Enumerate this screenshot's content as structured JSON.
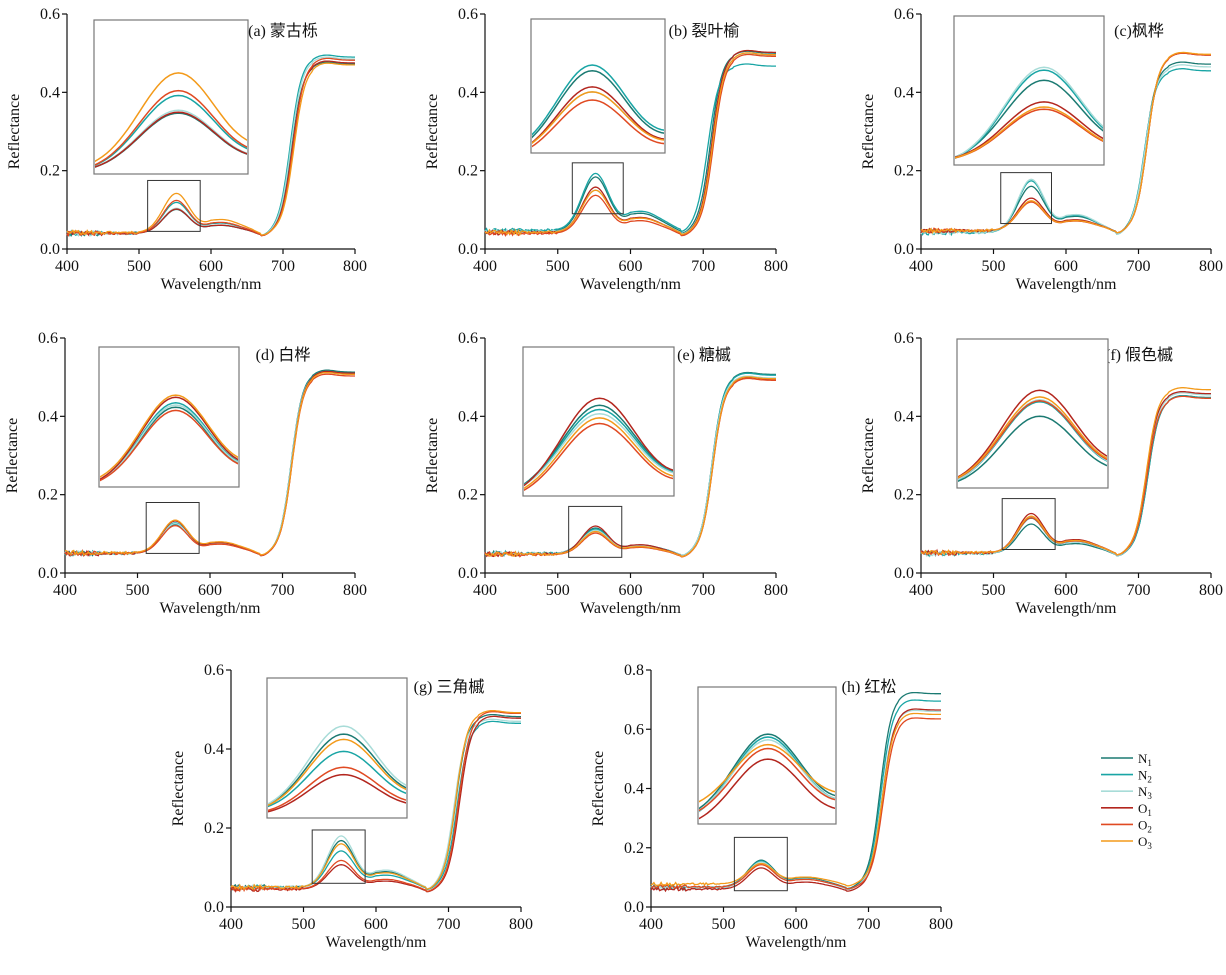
{
  "chart_data": {
    "type": "line",
    "layout": "8 subplots (3-3-2 grid) with shared legend at right of bottom row",
    "xlabel": "Wavelength/nm",
    "ylabel": "Reflectance",
    "xlim": [
      400,
      800
    ],
    "xticks": [
      400,
      500,
      600,
      700,
      800
    ],
    "legend": {
      "placement": "bottom-right",
      "entries": [
        {
          "key": "N1",
          "base": "N",
          "sub": "1",
          "color": "#1b7a72"
        },
        {
          "key": "N2",
          "base": "N",
          "sub": "2",
          "color": "#19a5a5"
        },
        {
          "key": "N3",
          "base": "N",
          "sub": "3",
          "color": "#a8dcd8"
        },
        {
          "key": "O1",
          "base": "O",
          "sub": "1",
          "color": "#b3261e"
        },
        {
          "key": "O2",
          "base": "O",
          "sub": "2",
          "color": "#e04a22"
        },
        {
          "key": "O3",
          "base": "O",
          "sub": "3",
          "color": "#f39a1a"
        }
      ]
    },
    "inset_note": "Each panel has a zoom box over ~515-585 nm around the green peak, magnified in an inset",
    "panels": [
      {
        "id": "a",
        "title": "(a) 蒙古栎",
        "ylim": [
          0,
          0.6
        ],
        "yticks": [
          0.0,
          0.2,
          0.4,
          0.6
        ],
        "zoom_box": {
          "x": [
            512,
            585
          ],
          "y": [
            0.045,
            0.175
          ]
        },
        "series": {
          "N1": {
            "base": 0.04,
            "green": 0.101,
            "nir": 0.472,
            "red_edge": 712
          },
          "N2": {
            "base": 0.04,
            "green": 0.119,
            "nir": 0.49,
            "red_edge": 710
          },
          "N3": {
            "base": 0.04,
            "green": 0.104,
            "nir": 0.485,
            "red_edge": 711
          },
          "O1": {
            "base": 0.04,
            "green": 0.102,
            "nir": 0.475,
            "red_edge": 713
          },
          "O2": {
            "base": 0.04,
            "green": 0.124,
            "nir": 0.482,
            "red_edge": 714
          },
          "O3": {
            "base": 0.042,
            "green": 0.142,
            "nir": 0.47,
            "red_edge": 715
          }
        }
      },
      {
        "id": "b",
        "title": "(b) 裂叶榆",
        "ylim": [
          0,
          0.6
        ],
        "yticks": [
          0.0,
          0.2,
          0.4,
          0.6
        ],
        "zoom_box": {
          "x": [
            520,
            590
          ],
          "y": [
            0.09,
            0.22
          ]
        },
        "series": {
          "N1": {
            "base": 0.045,
            "green": 0.184,
            "nir": 0.5,
            "red_edge": 710
          },
          "N2": {
            "base": 0.048,
            "green": 0.193,
            "nir": 0.467,
            "red_edge": 706
          },
          "N3": {
            "base": 0.044,
            "green": 0.15,
            "nir": 0.495,
            "red_edge": 712
          },
          "O1": {
            "base": 0.042,
            "green": 0.158,
            "nir": 0.502,
            "red_edge": 712
          },
          "O2": {
            "base": 0.04,
            "green": 0.137,
            "nir": 0.492,
            "red_edge": 714
          },
          "O3": {
            "base": 0.043,
            "green": 0.15,
            "nir": 0.496,
            "red_edge": 713
          }
        }
      },
      {
        "id": "c",
        "title": "(c)枫桦",
        "ylim": [
          0,
          0.6
        ],
        "yticks": [
          0.0,
          0.2,
          0.4,
          0.6
        ],
        "zoom_box": {
          "x": [
            510,
            580
          ],
          "y": [
            0.065,
            0.195
          ]
        },
        "series": {
          "N1": {
            "base": 0.045,
            "green": 0.16,
            "nir": 0.472,
            "red_edge": 709
          },
          "N2": {
            "base": 0.042,
            "green": 0.174,
            "nir": 0.455,
            "red_edge": 708
          },
          "N3": {
            "base": 0.043,
            "green": 0.178,
            "nir": 0.465,
            "red_edge": 709
          },
          "O1": {
            "base": 0.047,
            "green": 0.13,
            "nir": 0.495,
            "red_edge": 712
          },
          "O2": {
            "base": 0.047,
            "green": 0.12,
            "nir": 0.495,
            "red_edge": 712
          },
          "O3": {
            "base": 0.047,
            "green": 0.123,
            "nir": 0.497,
            "red_edge": 712
          }
        }
      },
      {
        "id": "d",
        "title": "(d) 白桦",
        "ylim": [
          0,
          0.6
        ],
        "yticks": [
          0.0,
          0.2,
          0.4,
          0.6
        ],
        "zoom_box": {
          "x": [
            512,
            585
          ],
          "y": [
            0.05,
            0.18
          ]
        },
        "series": {
          "N1": {
            "base": 0.05,
            "green": 0.124,
            "nir": 0.513,
            "red_edge": 712
          },
          "N2": {
            "base": 0.05,
            "green": 0.128,
            "nir": 0.51,
            "red_edge": 712
          },
          "N3": {
            "base": 0.05,
            "green": 0.126,
            "nir": 0.508,
            "red_edge": 712
          },
          "O1": {
            "base": 0.05,
            "green": 0.133,
            "nir": 0.51,
            "red_edge": 713
          },
          "O2": {
            "base": 0.05,
            "green": 0.121,
            "nir": 0.503,
            "red_edge": 713
          },
          "O3": {
            "base": 0.052,
            "green": 0.135,
            "nir": 0.507,
            "red_edge": 713
          }
        }
      },
      {
        "id": "e",
        "title": "(e) 糖槭",
        "ylim": [
          0,
          0.6
        ],
        "yticks": [
          0.0,
          0.2,
          0.4,
          0.6
        ],
        "zoom_box": {
          "x": [
            515,
            588
          ],
          "y": [
            0.04,
            0.17
          ]
        },
        "series": {
          "N1": {
            "base": 0.05,
            "green": 0.115,
            "nir": 0.507,
            "red_edge": 712
          },
          "N2": {
            "base": 0.05,
            "green": 0.112,
            "nir": 0.505,
            "red_edge": 712
          },
          "N3": {
            "base": 0.05,
            "green": 0.109,
            "nir": 0.498,
            "red_edge": 712
          },
          "O1": {
            "base": 0.048,
            "green": 0.12,
            "nir": 0.495,
            "red_edge": 713
          },
          "O2": {
            "base": 0.047,
            "green": 0.102,
            "nir": 0.492,
            "red_edge": 713
          },
          "O3": {
            "base": 0.048,
            "green": 0.106,
            "nir": 0.496,
            "red_edge": 713
          }
        }
      },
      {
        "id": "f",
        "title": "(f) 假色槭",
        "ylim": [
          0,
          0.6
        ],
        "yticks": [
          0.0,
          0.2,
          0.4,
          0.6
        ],
        "zoom_box": {
          "x": [
            512,
            585
          ],
          "y": [
            0.06,
            0.19
          ]
        },
        "series": {
          "N1": {
            "base": 0.05,
            "green": 0.125,
            "nir": 0.448,
            "red_edge": 713
          },
          "N2": {
            "base": 0.05,
            "green": 0.14,
            "nir": 0.448,
            "red_edge": 713
          },
          "N3": {
            "base": 0.05,
            "green": 0.142,
            "nir": 0.455,
            "red_edge": 712
          },
          "O1": {
            "base": 0.052,
            "green": 0.152,
            "nir": 0.458,
            "red_edge": 711
          },
          "O2": {
            "base": 0.052,
            "green": 0.141,
            "nir": 0.446,
            "red_edge": 712
          },
          "O3": {
            "base": 0.052,
            "green": 0.145,
            "nir": 0.468,
            "red_edge": 711
          }
        }
      },
      {
        "id": "g",
        "title": "(g) 三角槭",
        "ylim": [
          0,
          0.6
        ],
        "yticks": [
          0.0,
          0.2,
          0.4,
          0.6
        ],
        "zoom_box": {
          "x": [
            512,
            585
          ],
          "y": [
            0.06,
            0.195
          ]
        },
        "series": {
          "N1": {
            "base": 0.05,
            "green": 0.168,
            "nir": 0.482,
            "red_edge": 710
          },
          "N2": {
            "base": 0.05,
            "green": 0.142,
            "nir": 0.465,
            "red_edge": 712
          },
          "N3": {
            "base": 0.05,
            "green": 0.18,
            "nir": 0.47,
            "red_edge": 708
          },
          "O1": {
            "base": 0.045,
            "green": 0.107,
            "nir": 0.478,
            "red_edge": 715
          },
          "O2": {
            "base": 0.046,
            "green": 0.118,
            "nir": 0.49,
            "red_edge": 714
          },
          "O3": {
            "base": 0.05,
            "green": 0.16,
            "nir": 0.492,
            "red_edge": 710
          }
        }
      },
      {
        "id": "h",
        "title": "(h) 红松",
        "ylim": [
          0,
          0.8
        ],
        "yticks": [
          0.0,
          0.2,
          0.4,
          0.6,
          0.8
        ],
        "zoom_box": {
          "x": [
            515,
            588
          ],
          "y": [
            0.055,
            0.235
          ]
        },
        "series": {
          "N1": {
            "base": 0.068,
            "green": 0.158,
            "nir": 0.72,
            "red_edge": 716
          },
          "N2": {
            "base": 0.065,
            "green": 0.155,
            "nir": 0.695,
            "red_edge": 717
          },
          "N3": {
            "base": 0.066,
            "green": 0.152,
            "nir": 0.66,
            "red_edge": 718
          },
          "O1": {
            "base": 0.06,
            "green": 0.132,
            "nir": 0.665,
            "red_edge": 719
          },
          "O2": {
            "base": 0.068,
            "green": 0.143,
            "nir": 0.635,
            "red_edge": 720
          },
          "O3": {
            "base": 0.078,
            "green": 0.147,
            "nir": 0.65,
            "red_edge": 719
          }
        }
      }
    ]
  }
}
